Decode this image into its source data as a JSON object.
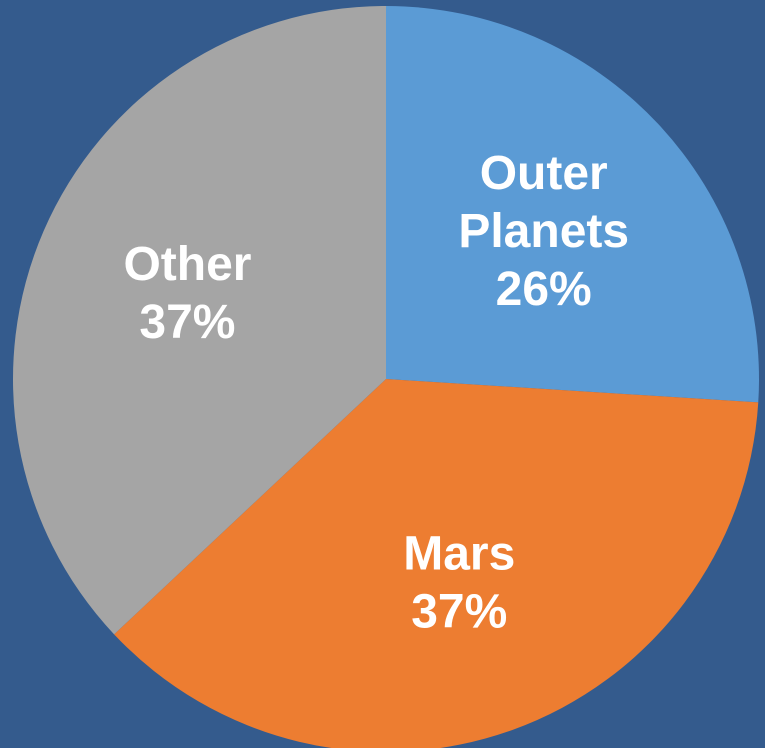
{
  "background_color": "#345b8d",
  "chart_data": {
    "type": "pie",
    "start_angle_deg": 0,
    "direction": "clockwise",
    "legend": "none",
    "slices": [
      {
        "label_lines": [
          "Outer",
          "Planets"
        ],
        "value": 26,
        "value_label": "26%",
        "color": "#5b9bd5"
      },
      {
        "label_lines": [
          "Mars"
        ],
        "value": 37,
        "value_label": "37%",
        "color": "#ed7d31"
      },
      {
        "label_lines": [
          "Other"
        ],
        "value": 37,
        "value_label": "37%",
        "color": "#a5a5a5"
      }
    ]
  }
}
